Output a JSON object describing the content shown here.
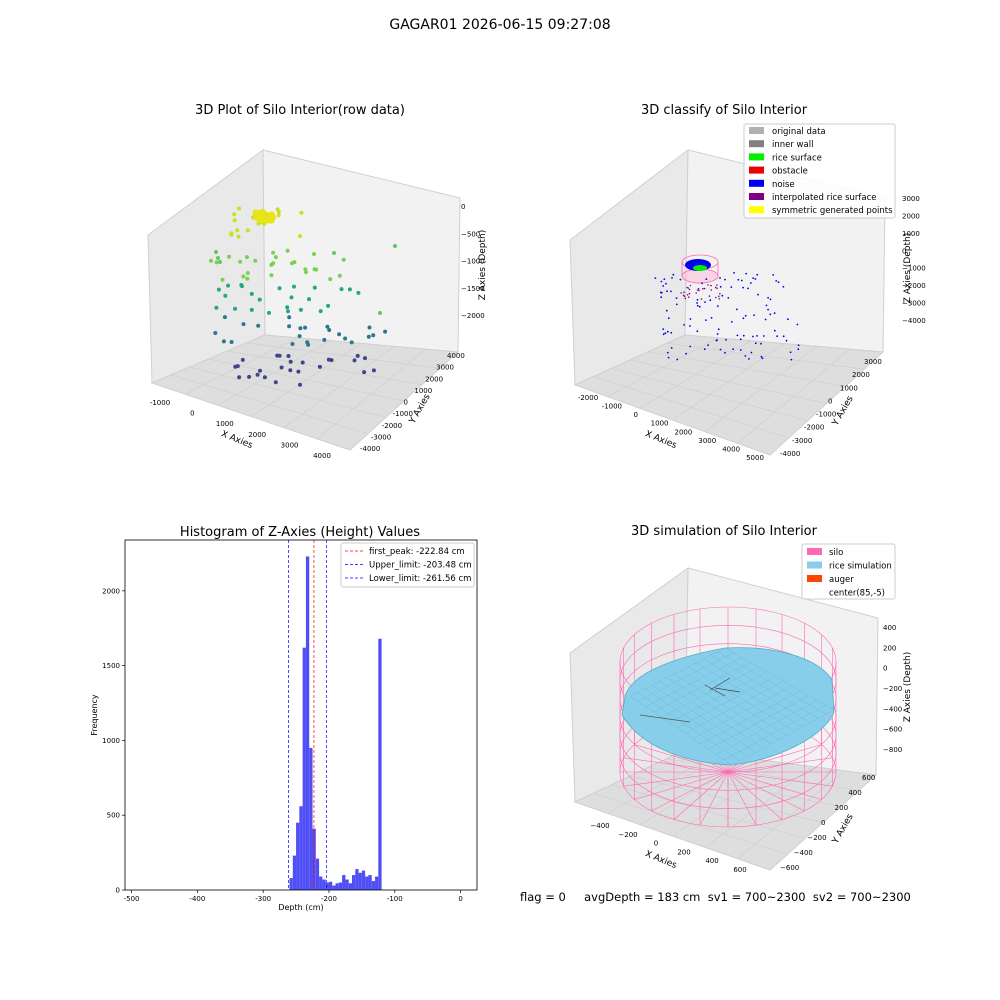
{
  "figure": {
    "suptitle": "GAGAR01 2026-06-15 09:27:08",
    "footer": "flag = 0     avgDepth = 183 cm  sv1 = 700~2300  sv2 = 700~2300"
  },
  "panels": {
    "raw": {
      "title": "3D Plot of Silo Interior(row data)",
      "xlabel": "X Axies",
      "ylabel": "Y Axies",
      "zlabel": "Z Axies (Depth)",
      "xticks": [
        "-1000",
        "0",
        "1000",
        "2000",
        "3000",
        "4000"
      ],
      "yticks": [
        "-4000",
        "-3000",
        "-2000",
        "-1000",
        "0",
        "1000",
        "2000",
        "3000",
        "4000"
      ],
      "zticks": [
        "0",
        "−500",
        "−1000",
        "−1500",
        "−2000"
      ]
    },
    "classify": {
      "title": "3D classify of Silo Interior",
      "xlabel": "X Axies",
      "ylabel": "Y Axies",
      "zlabel": "Z Axies (Depth)",
      "xticks": [
        "-2000",
        "-1000",
        "0",
        "1000",
        "2000",
        "3000",
        "4000",
        "5000"
      ],
      "yticks": [
        "-4000",
        "-3000",
        "-2000",
        "-1000",
        "0",
        "1000",
        "2000",
        "3000"
      ],
      "zticks": [
        "3000",
        "2000",
        "1000",
        "0",
        "−1000",
        "−2000",
        "−3000",
        "−4000"
      ],
      "legend": [
        {
          "label": "original data",
          "color": "#b0b0b0"
        },
        {
          "label": "inner wall",
          "color": "#808080"
        },
        {
          "label": "rice surface",
          "color": "#00ee00"
        },
        {
          "label": "obstacle",
          "color": "#ee0000"
        },
        {
          "label": "noise",
          "color": "#0000ee"
        },
        {
          "label": "interpolated rice surface",
          "color": "#800080"
        },
        {
          "label": "symmetric generated points",
          "color": "#ffff00"
        }
      ]
    },
    "simulation": {
      "title": "3D simulation of Silo Interior",
      "xlabel": "X Axies",
      "ylabel": "Y Axies",
      "zlabel": "Z Axies (Depth)",
      "xticks": [
        "−400",
        "−200",
        "0",
        "200",
        "400",
        "600"
      ],
      "yticks": [
        "−600",
        "−400",
        "−200",
        "0",
        "200",
        "400",
        "600"
      ],
      "zticks": [
        "400",
        "200",
        "0",
        "−200",
        "−400",
        "−600",
        "−800"
      ],
      "legend": [
        {
          "label": "silo",
          "color": "#ff69b4"
        },
        {
          "label": "rice simulation",
          "color": "#87ceeb"
        },
        {
          "label": "auger",
          "color": "#ff4500"
        },
        {
          "label": "center(85,-5)",
          "color": "#ffffff"
        }
      ]
    }
  },
  "chart_data": [
    {
      "type": "bar",
      "title": "Histogram of Z-Axies (Height) Values",
      "xlabel": "Depth (cm)",
      "ylabel": "Frequency",
      "xlim": [
        -510,
        25
      ],
      "ylim": [
        0,
        2340
      ],
      "xticks": [
        -500,
        -400,
        -300,
        -200,
        -100,
        0
      ],
      "yticks": [
        0,
        500,
        1000,
        1500,
        2000
      ],
      "bin_width": 5,
      "bins": [
        {
          "x": -260,
          "y": 80
        },
        {
          "x": -255,
          "y": 230
        },
        {
          "x": -250,
          "y": 450
        },
        {
          "x": -245,
          "y": 560
        },
        {
          "x": -240,
          "y": 1620
        },
        {
          "x": -235,
          "y": 2230
        },
        {
          "x": -230,
          "y": 950
        },
        {
          "x": -225,
          "y": 410
        },
        {
          "x": -220,
          "y": 210
        },
        {
          "x": -215,
          "y": 90
        },
        {
          "x": -210,
          "y": 70
        },
        {
          "x": -205,
          "y": 50
        },
        {
          "x": -200,
          "y": 55
        },
        {
          "x": -195,
          "y": 30
        },
        {
          "x": -190,
          "y": 45
        },
        {
          "x": -185,
          "y": 50
        },
        {
          "x": -180,
          "y": 100
        },
        {
          "x": -175,
          "y": 70
        },
        {
          "x": -170,
          "y": 45
        },
        {
          "x": -165,
          "y": 100
        },
        {
          "x": -160,
          "y": 140
        },
        {
          "x": -155,
          "y": 115
        },
        {
          "x": -150,
          "y": 130
        },
        {
          "x": -145,
          "y": 90
        },
        {
          "x": -140,
          "y": 100
        },
        {
          "x": -135,
          "y": 60
        },
        {
          "x": -130,
          "y": 90
        },
        {
          "x": -125,
          "y": 1680
        }
      ],
      "vlines": [
        {
          "label": "first_peak: -222.84 cm",
          "x": -222.84,
          "color": "#ff0000"
        },
        {
          "label": "Upper_limit: -203.48 cm",
          "x": -203.48,
          "color": "#0000ff"
        },
        {
          "label": "Lower_limit: -261.56 cm",
          "x": -261.56,
          "color": "#0000ff"
        }
      ],
      "bar_color": "#4f4ff5"
    }
  ]
}
